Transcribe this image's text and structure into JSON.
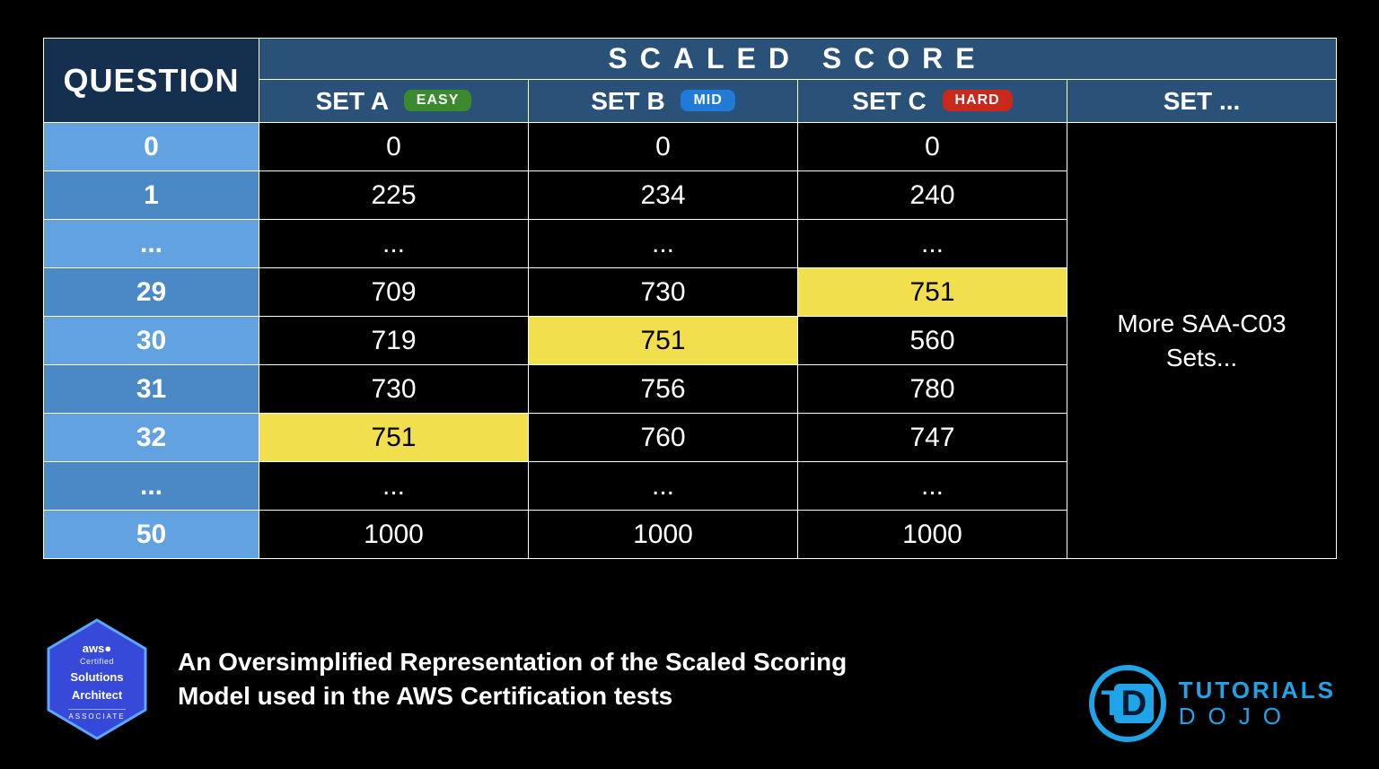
{
  "colors": {
    "background": "#000000",
    "header_dark": "#152f4e",
    "header_mid": "#2a5178",
    "qcell": "#4a88c6",
    "qcell_alt": "#62a2e0",
    "cell_bg": "#000000",
    "grid": "#ffffff",
    "text": "#ffffff",
    "highlight_bg": "#f2df4d",
    "highlight_text": "#000000",
    "badge_easy": "#3b8a2e",
    "badge_mid": "#1f7bd6",
    "badge_hard": "#c9281c",
    "accent_brand": "#1fa4e8",
    "aws_badge_fill": "#3649d8",
    "aws_badge_stroke": "#5aa7ff"
  },
  "header": {
    "question": "QUESTION",
    "scaled_score": "SCALED  SCORE",
    "sets": {
      "a": {
        "label": "SET A",
        "badge": "EASY",
        "badge_key": "easy"
      },
      "b": {
        "label": "SET B",
        "badge": "MID",
        "badge_key": "mid"
      },
      "c": {
        "label": "SET C",
        "badge": "HARD",
        "badge_key": "hard"
      },
      "more": {
        "label": "SET ..."
      }
    }
  },
  "rows": [
    {
      "q": "0",
      "a": "0",
      "b": "0",
      "c": "0"
    },
    {
      "q": "1",
      "a": "225",
      "b": "234",
      "c": "240"
    },
    {
      "q": "...",
      "a": "...",
      "b": "...",
      "c": "..."
    },
    {
      "q": "29",
      "a": "709",
      "b": "730",
      "c": "751",
      "hl": [
        "c"
      ]
    },
    {
      "q": "30",
      "a": "719",
      "b": "751",
      "c": "560",
      "hl": [
        "b"
      ]
    },
    {
      "q": "31",
      "a": "730",
      "b": "756",
      "c": "780"
    },
    {
      "q": "32",
      "a": "751",
      "b": "760",
      "c": "747",
      "hl": [
        "a"
      ]
    },
    {
      "q": "...",
      "a": "...",
      "b": "...",
      "c": "..."
    },
    {
      "q": "50",
      "a": "1000",
      "b": "1000",
      "c": "1000"
    }
  ],
  "more_sets_text": "More SAA-C03\nSets...",
  "caption": "An Oversimplified Representation of the Scaled Scoring Model used in the AWS Certification tests",
  "aws_badge": {
    "line1": "aws",
    "line2": "Certified",
    "line3": "Solutions",
    "line4": "Architect",
    "line5": "ASSOCIATE"
  },
  "brand": {
    "initials_t": "T",
    "initials_d": "D",
    "word1": "TUTORIALS",
    "word2": "DOJO"
  }
}
